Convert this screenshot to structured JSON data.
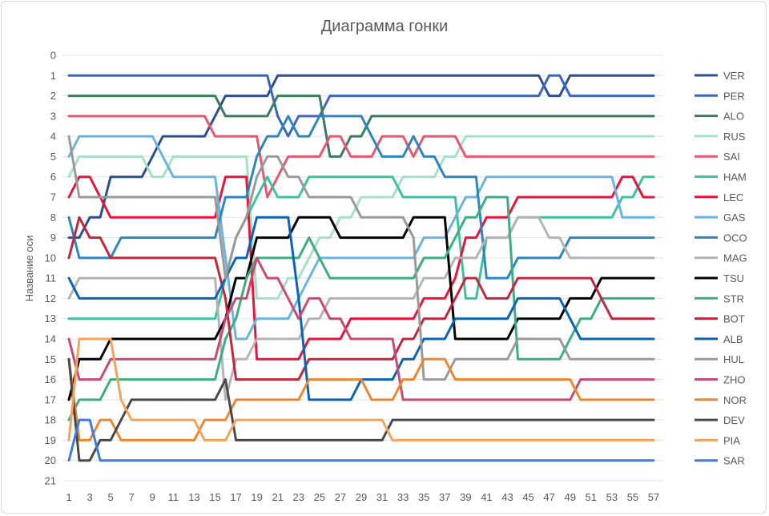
{
  "chart_data": {
    "type": "line",
    "title": "Диаграмма гонки",
    "xlabel": "",
    "ylabel": "Название оси",
    "ylim": [
      0,
      21
    ],
    "y_inverted": true,
    "xlim": [
      1,
      57
    ],
    "grid": true,
    "legend_position": "right",
    "y_ticks": [
      "0",
      "1",
      "2",
      "3",
      "4",
      "5",
      "6",
      "7",
      "8",
      "9",
      "10",
      "11",
      "12",
      "13",
      "14",
      "15",
      "16",
      "17",
      "18",
      "19",
      "20",
      "21"
    ],
    "x_ticks": [
      "1",
      "3",
      "5",
      "7",
      "9",
      "11",
      "13",
      "15",
      "17",
      "19",
      "21",
      "23",
      "25",
      "27",
      "29",
      "31",
      "33",
      "35",
      "37",
      "39",
      "41",
      "43",
      "45",
      "47",
      "49",
      "51",
      "53",
      "55",
      "57"
    ],
    "x": [
      1,
      2,
      3,
      4,
      5,
      6,
      7,
      8,
      9,
      10,
      11,
      12,
      13,
      14,
      15,
      16,
      17,
      18,
      19,
      20,
      21,
      22,
      23,
      24,
      25,
      26,
      27,
      28,
      29,
      30,
      31,
      32,
      33,
      34,
      35,
      36,
      37,
      38,
      39,
      40,
      41,
      42,
      43,
      44,
      45,
      46,
      47,
      48,
      49,
      50,
      51,
      52,
      53,
      54,
      55,
      56,
      57
    ],
    "series": [
      {
        "name": "VER",
        "color": "#2E4F8E",
        "values": [
          9,
          9,
          8,
          8,
          6,
          6,
          6,
          6,
          5,
          4,
          4,
          4,
          4,
          4,
          3,
          2,
          2,
          2,
          2,
          2,
          1,
          1,
          1,
          1,
          1,
          1,
          1,
          1,
          1,
          1,
          1,
          1,
          1,
          1,
          1,
          1,
          1,
          1,
          1,
          1,
          1,
          1,
          1,
          1,
          1,
          1,
          2,
          2,
          1,
          1,
          1,
          1,
          1,
          1,
          1,
          1,
          1
        ]
      },
      {
        "name": "PER",
        "color": "#3A66C0",
        "values": [
          1,
          1,
          1,
          1,
          1,
          1,
          1,
          1,
          1,
          1,
          1,
          1,
          1,
          1,
          1,
          1,
          1,
          1,
          1,
          1,
          3,
          4,
          3,
          3,
          3,
          2,
          2,
          2,
          2,
          2,
          2,
          2,
          2,
          2,
          2,
          2,
          2,
          2,
          2,
          2,
          2,
          2,
          2,
          2,
          2,
          2,
          1,
          1,
          2,
          2,
          2,
          2,
          2,
          2,
          2,
          2,
          2
        ]
      },
      {
        "name": "ALO",
        "color": "#3A7D5C",
        "values": [
          2,
          2,
          2,
          2,
          2,
          2,
          2,
          2,
          2,
          2,
          2,
          2,
          2,
          2,
          2,
          3,
          3,
          3,
          3,
          3,
          2,
          2,
          2,
          2,
          2,
          5,
          5,
          4,
          4,
          3,
          3,
          3,
          3,
          3,
          3,
          3,
          3,
          3,
          3,
          3,
          3,
          3,
          3,
          3,
          3,
          3,
          3,
          3,
          3,
          3,
          3,
          3,
          3,
          3,
          3,
          3,
          3
        ]
      },
      {
        "name": "RUS",
        "color": "#A5E0C8",
        "values": [
          6,
          5,
          5,
          5,
          5,
          5,
          5,
          5,
          6,
          6,
          5,
          5,
          5,
          5,
          5,
          5,
          5,
          5,
          12,
          12,
          12,
          11,
          11,
          10,
          9,
          9,
          8,
          8,
          7,
          7,
          7,
          7,
          6,
          6,
          6,
          6,
          5,
          5,
          4,
          4,
          4,
          4,
          4,
          4,
          4,
          4,
          4,
          4,
          4,
          4,
          4,
          4,
          4,
          4,
          4,
          4,
          4
        ]
      },
      {
        "name": "SAI",
        "color": "#E85670",
        "values": [
          3,
          3,
          3,
          3,
          3,
          3,
          3,
          3,
          3,
          3,
          3,
          3,
          3,
          3,
          4,
          4,
          4,
          4,
          4,
          7,
          6,
          5,
          5,
          5,
          5,
          4,
          4,
          5,
          5,
          5,
          4,
          4,
          4,
          5,
          4,
          4,
          4,
          4,
          5,
          5,
          5,
          5,
          5,
          5,
          5,
          5,
          5,
          5,
          5,
          5,
          5,
          5,
          5,
          5,
          5,
          5,
          5
        ]
      },
      {
        "name": "HAM",
        "color": "#3CC2A0",
        "values": [
          13,
          13,
          13,
          13,
          13,
          13,
          13,
          13,
          13,
          13,
          13,
          13,
          13,
          13,
          13,
          11,
          9,
          8,
          7,
          6,
          7,
          7,
          7,
          6,
          6,
          6,
          6,
          6,
          6,
          6,
          6,
          6,
          7,
          7,
          7,
          7,
          7,
          7,
          12,
          12,
          9,
          9,
          9,
          8,
          8,
          8,
          8,
          8,
          8,
          8,
          8,
          8,
          8,
          7,
          7,
          6,
          6
        ]
      },
      {
        "name": "LEC",
        "color": "#E8143C",
        "values": [
          7,
          6,
          6,
          7,
          8,
          8,
          8,
          8,
          8,
          8,
          8,
          8,
          8,
          8,
          8,
          6,
          6,
          6,
          15,
          15,
          15,
          15,
          15,
          14,
          14,
          14,
          14,
          13,
          13,
          13,
          13,
          13,
          13,
          13,
          12,
          12,
          12,
          11,
          9,
          9,
          8,
          8,
          8,
          7,
          7,
          7,
          7,
          7,
          7,
          7,
          7,
          7,
          7,
          6,
          6,
          7,
          7
        ]
      },
      {
        "name": "GAS",
        "color": "#6BB3E0",
        "values": [
          5,
          4,
          4,
          4,
          4,
          4,
          4,
          4,
          4,
          5,
          6,
          6,
          6,
          6,
          6,
          10,
          14,
          14,
          13,
          13,
          13,
          13,
          12,
          11,
          10,
          10,
          10,
          10,
          10,
          10,
          10,
          10,
          10,
          10,
          9,
          9,
          9,
          8,
          7,
          7,
          6,
          6,
          6,
          6,
          6,
          6,
          6,
          6,
          6,
          6,
          6,
          6,
          6,
          8,
          8,
          8,
          8
        ]
      },
      {
        "name": "OCO",
        "color": "#2E86C1",
        "values": [
          8,
          10,
          10,
          10,
          10,
          9,
          9,
          9,
          9,
          9,
          9,
          9,
          9,
          9,
          9,
          7,
          7,
          7,
          5,
          4,
          4,
          3,
          4,
          4,
          3,
          3,
          3,
          3,
          3,
          4,
          5,
          5,
          5,
          4,
          5,
          5,
          6,
          6,
          6,
          6,
          11,
          11,
          11,
          10,
          10,
          10,
          10,
          10,
          9,
          9,
          9,
          9,
          9,
          9,
          9,
          9,
          9
        ]
      },
      {
        "name": "MAG",
        "color": "#B4B4B4",
        "values": [
          12,
          11,
          11,
          11,
          11,
          11,
          11,
          11,
          11,
          11,
          11,
          11,
          11,
          11,
          11,
          17,
          15,
          15,
          14,
          14,
          14,
          14,
          14,
          13,
          13,
          12,
          12,
          12,
          12,
          12,
          12,
          12,
          12,
          12,
          11,
          11,
          11,
          10,
          10,
          10,
          9,
          9,
          9,
          8,
          8,
          8,
          9,
          9,
          10,
          10,
          10,
          10,
          10,
          10,
          10,
          10,
          10
        ]
      },
      {
        "name": "TSU",
        "color": "#000000",
        "values": [
          17,
          15,
          15,
          15,
          14,
          14,
          14,
          14,
          14,
          14,
          14,
          14,
          14,
          14,
          14,
          13,
          11,
          11,
          9,
          9,
          9,
          9,
          8,
          8,
          8,
          8,
          9,
          9,
          9,
          9,
          9,
          9,
          9,
          8,
          8,
          8,
          8,
          14,
          14,
          14,
          14,
          14,
          14,
          13,
          13,
          13,
          13,
          13,
          12,
          12,
          12,
          11,
          11,
          11,
          11,
          11,
          11
        ]
      },
      {
        "name": "STR",
        "color": "#3DAE80",
        "values": [
          18,
          17,
          17,
          17,
          16,
          16,
          16,
          16,
          16,
          16,
          16,
          16,
          16,
          16,
          16,
          14,
          13,
          11,
          10,
          10,
          10,
          10,
          10,
          9,
          10,
          11,
          11,
          11,
          11,
          11,
          11,
          11,
          11,
          11,
          10,
          10,
          10,
          9,
          8,
          8,
          7,
          7,
          7,
          15,
          15,
          15,
          15,
          15,
          14,
          13,
          13,
          12,
          12,
          12,
          12,
          12,
          12
        ]
      },
      {
        "name": "BOT",
        "color": "#C0283F",
        "values": [
          10,
          8,
          9,
          9,
          10,
          10,
          10,
          10,
          10,
          10,
          10,
          10,
          10,
          10,
          10,
          12,
          16,
          16,
          16,
          16,
          16,
          16,
          16,
          15,
          15,
          15,
          15,
          15,
          15,
          15,
          15,
          15,
          14,
          14,
          13,
          13,
          13,
          12,
          11,
          11,
          12,
          12,
          12,
          11,
          11,
          11,
          11,
          11,
          11,
          11,
          11,
          12,
          13,
          13,
          13,
          13,
          13
        ]
      },
      {
        "name": "ALB",
        "color": "#0A64B4",
        "values": [
          11,
          12,
          12,
          12,
          12,
          12,
          12,
          12,
          12,
          12,
          12,
          12,
          12,
          12,
          12,
          11,
          10,
          10,
          8,
          8,
          8,
          8,
          12,
          17,
          17,
          17,
          17,
          17,
          16,
          16,
          16,
          16,
          15,
          15,
          14,
          14,
          14,
          13,
          13,
          13,
          13,
          13,
          13,
          12,
          12,
          12,
          12,
          12,
          13,
          14,
          14,
          14,
          14,
          14,
          14,
          14,
          14
        ]
      },
      {
        "name": "HUL",
        "color": "#9A9A9A",
        "values": [
          4,
          7,
          7,
          7,
          7,
          7,
          7,
          7,
          7,
          7,
          7,
          7,
          7,
          7,
          7,
          11,
          9,
          8,
          6,
          5,
          5,
          6,
          6,
          7,
          7,
          7,
          7,
          7,
          8,
          8,
          8,
          8,
          8,
          9,
          16,
          16,
          16,
          15,
          15,
          15,
          15,
          15,
          15,
          14,
          14,
          14,
          14,
          14,
          15,
          15,
          15,
          15,
          15,
          15,
          15,
          15,
          15
        ]
      },
      {
        "name": "ZHO",
        "color": "#C94A72",
        "values": [
          14,
          16,
          16,
          16,
          15,
          15,
          15,
          15,
          15,
          15,
          15,
          15,
          15,
          15,
          15,
          13,
          12,
          12,
          10,
          11,
          11,
          12,
          13,
          12,
          12,
          13,
          13,
          14,
          14,
          14,
          14,
          14,
          17,
          17,
          17,
          17,
          17,
          17,
          17,
          17,
          17,
          17,
          17,
          17,
          17,
          17,
          17,
          17,
          17,
          16,
          16,
          16,
          16,
          16,
          16,
          16,
          16
        ]
      },
      {
        "name": "NOR",
        "color": "#EE8630",
        "values": [
          15,
          19,
          19,
          18,
          18,
          19,
          19,
          19,
          19,
          19,
          19,
          19,
          19,
          18,
          18,
          18,
          17,
          17,
          17,
          17,
          17,
          17,
          17,
          16,
          16,
          16,
          16,
          16,
          16,
          17,
          17,
          17,
          16,
          16,
          15,
          15,
          15,
          16,
          16,
          16,
          16,
          16,
          16,
          16,
          16,
          16,
          16,
          16,
          16,
          17,
          17,
          17,
          17,
          17,
          17,
          17,
          17
        ]
      },
      {
        "name": "DEV",
        "color": "#4A4A4A",
        "values": [
          15,
          20,
          20,
          19,
          19,
          18,
          17,
          17,
          17,
          17,
          17,
          17,
          17,
          17,
          17,
          16,
          19,
          19,
          19,
          19,
          19,
          19,
          19,
          19,
          19,
          19,
          19,
          19,
          19,
          19,
          19,
          18,
          18,
          18,
          18,
          18,
          18,
          18,
          18,
          18,
          18,
          18,
          18,
          18,
          18,
          18,
          18,
          18,
          18,
          18,
          18,
          18,
          18,
          18,
          18,
          18,
          18
        ]
      },
      {
        "name": "PIA",
        "color": "#F2A45A",
        "values": [
          19,
          14,
          14,
          14,
          14,
          17,
          18,
          18,
          18,
          18,
          18,
          18,
          18,
          19,
          19,
          19,
          18,
          18,
          18,
          18,
          18,
          18,
          18,
          18,
          18,
          18,
          18,
          18,
          18,
          18,
          18,
          19,
          19,
          19,
          19,
          19,
          19,
          19,
          19,
          19,
          19,
          19,
          19,
          19,
          19,
          19,
          19,
          19,
          19,
          19,
          19,
          19,
          19,
          19,
          19,
          19,
          19
        ]
      },
      {
        "name": "SAR",
        "color": "#3C7BE0",
        "values": [
          20,
          18,
          18,
          20,
          20,
          20,
          20,
          20,
          20,
          20,
          20,
          20,
          20,
          20,
          20,
          20,
          20,
          20,
          20,
          20,
          20,
          20,
          20,
          20,
          20,
          20,
          20,
          20,
          20,
          20,
          20,
          20,
          20,
          20,
          20,
          20,
          20,
          20,
          20,
          20,
          20,
          20,
          20,
          20,
          20,
          20,
          20,
          20,
          20,
          20,
          20,
          20,
          20,
          20,
          20,
          20,
          20
        ]
      }
    ]
  }
}
